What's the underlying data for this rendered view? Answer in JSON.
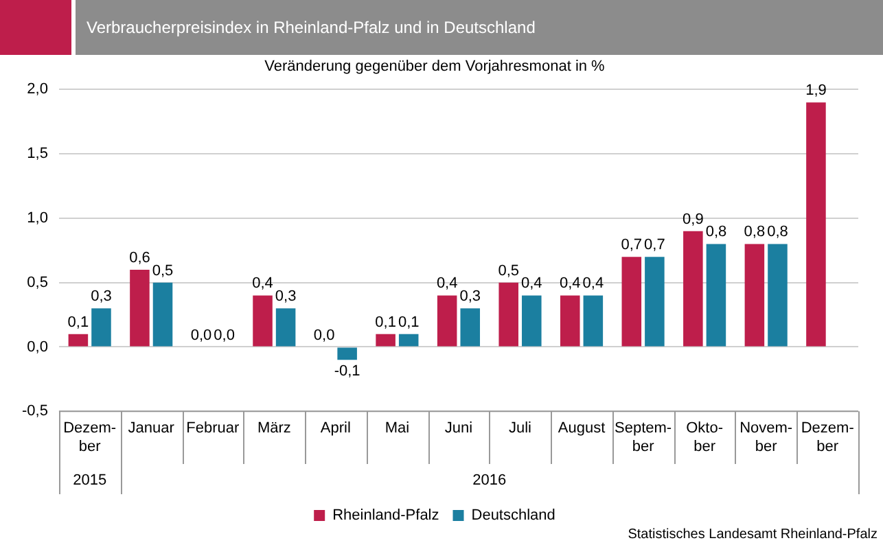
{
  "chart_data": {
    "type": "bar",
    "title": "Verbraucherpreisindex  in Rheinland-Pfalz und in Deutschland",
    "subtitle": "Veränderung gegenüber dem Vorjahresmonat in %",
    "categories": [
      "Dezem-ber",
      "Januar",
      "Februar",
      "März",
      "April",
      "Mai",
      "Juni",
      "Juli",
      "August",
      "Septem-ber",
      "Okto-ber",
      "Novem-ber",
      "Dezem-ber"
    ],
    "series": [
      {
        "name": "Rheinland-Pfalz",
        "color": "#be1e4b",
        "values": [
          0.1,
          0.6,
          0.0,
          0.4,
          0.0,
          0.1,
          0.4,
          0.5,
          0.4,
          0.7,
          0.9,
          0.8,
          1.9
        ],
        "value_labels": [
          "0,1",
          "0,6",
          "0,0",
          "0,4",
          "0,0",
          "0,1",
          "0,4",
          "0,5",
          "0,4",
          "0,7",
          "0,9",
          "0,8",
          "1,9"
        ]
      },
      {
        "name": "Deutschland",
        "color": "#1b7fa0",
        "values": [
          0.3,
          0.5,
          0.0,
          0.3,
          -0.1,
          0.1,
          0.3,
          0.4,
          0.4,
          0.7,
          0.8,
          0.8,
          null
        ],
        "value_labels": [
          "0,3",
          "0,5",
          "0,0",
          "0,3",
          "-0,1",
          "0,1",
          "0,3",
          "0,4",
          "0,4",
          "0,7",
          "0,8",
          "0,8",
          null
        ]
      }
    ],
    "ylim": [
      -0.5,
      2.0
    ],
    "yticks": [
      {
        "value": -0.5,
        "label": "-0,5"
      },
      {
        "value": 0,
        "label": "0,0"
      },
      {
        "value": 0.5,
        "label": "0,5"
      },
      {
        "value": 1,
        "label": "1,0"
      },
      {
        "value": 1.5,
        "label": "1,5"
      },
      {
        "value": 2,
        "label": "2,0"
      }
    ],
    "grid": "y",
    "legend": "bottom",
    "annotations": [
      "2015",
      "2016",
      "Statistisches Landesamt Rheinland-Pfalz"
    ]
  }
}
